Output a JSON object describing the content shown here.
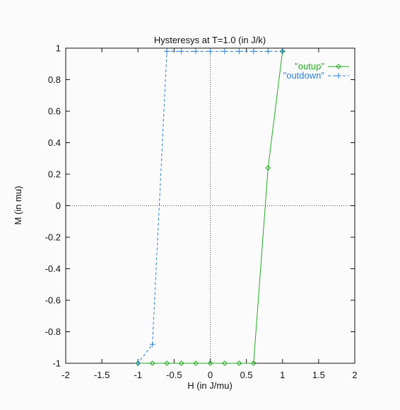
{
  "chart_data": {
    "type": "line",
    "title": "Hysteresys at T=1.0 (in J/k)",
    "xlabel": "H (in J/mu)",
    "ylabel": "M (in mu)",
    "xlim": [
      -2,
      2
    ],
    "ylim": [
      -1,
      1
    ],
    "xticks": [
      "-2",
      "-1.5",
      "-1",
      "-0.5",
      "0",
      "0.5",
      "1",
      "1.5",
      "2"
    ],
    "yticks": [
      "-1",
      "-0.8",
      "-0.6",
      "-0.4",
      "-0.2",
      "0",
      "0.2",
      "0.4",
      "0.6",
      "0.8",
      "1"
    ],
    "zero_axes": true,
    "legend_position": "top-right",
    "series": [
      {
        "name": "\"outup\"",
        "color": "#22aa22",
        "marker": "diamond",
        "dash": "solid",
        "x": [
          -1.0,
          -0.8,
          -0.6,
          -0.4,
          -0.2,
          0.0,
          0.2,
          0.4,
          0.6,
          0.8,
          1.0
        ],
        "y": [
          -1,
          -1,
          -1,
          -1,
          -1,
          -1,
          -1,
          -1,
          -1,
          0.24,
          0.98
        ]
      },
      {
        "name": "\"outdown\"",
        "color": "#2a7fd4",
        "marker": "plus",
        "dash": "dashed",
        "x": [
          1.0,
          0.8,
          0.6,
          0.4,
          0.2,
          0.0,
          -0.2,
          -0.4,
          -0.6,
          -0.8,
          -1.0
        ],
        "y": [
          0.98,
          0.98,
          0.98,
          0.98,
          0.98,
          0.98,
          0.98,
          0.98,
          0.98,
          -0.88,
          -1
        ]
      }
    ]
  }
}
